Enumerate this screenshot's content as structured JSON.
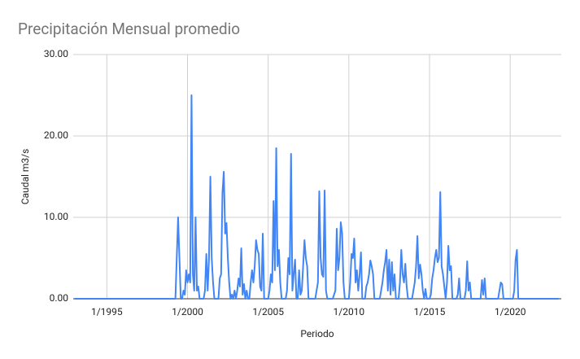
{
  "chart_data": {
    "type": "line",
    "title": "Precipitación Mensual promedio",
    "x_label": "Periodo",
    "y_label": "Caudal m3/s",
    "color": "#4285f4",
    "grid": true,
    "xlim": [
      "12/1992",
      "3/2023"
    ],
    "xticks": [
      "1/1995",
      "1/2000",
      "1/2005",
      "1/2010",
      "1/2015",
      "1/2020"
    ],
    "ylim": [
      0,
      30
    ],
    "yticks": [
      {
        "value": 0,
        "label": "0.00"
      },
      {
        "value": 10,
        "label": "10.00"
      },
      {
        "value": 20,
        "label": "20.00"
      },
      {
        "value": 30,
        "label": "30.00"
      }
    ],
    "x": [
      "1/1993",
      "4/1999",
      "6/1999",
      "7/1999",
      "8/1999",
      "9/1999",
      "10/1999",
      "11/1999",
      "12/1999",
      "1/2000",
      "2/2000",
      "3/2000",
      "4/2000",
      "5/2000",
      "6/2000",
      "7/2000",
      "8/2000",
      "9/2000",
      "10/2000",
      "1/2001",
      "2/2001",
      "3/2001",
      "4/2001",
      "5/2001",
      "6/2001",
      "7/2001",
      "8/2001",
      "9/2001",
      "12/2001",
      "1/2002",
      "2/2002",
      "3/2002",
      "4/2002",
      "5/2002",
      "6/2002",
      "7/2002",
      "8/2002",
      "9/2002",
      "10/2002",
      "11/2002",
      "12/2002",
      "1/2003",
      "2/2003",
      "3/2003",
      "4/2003",
      "5/2003",
      "6/2003",
      "7/2003",
      "8/2003",
      "9/2003",
      "10/2003",
      "11/2003",
      "12/2003",
      "1/2004",
      "2/2004",
      "3/2004",
      "4/2004",
      "5/2004",
      "6/2004",
      "7/2004",
      "8/2004",
      "9/2004",
      "10/2004",
      "1/2005",
      "2/2005",
      "3/2005",
      "4/2005",
      "5/2005",
      "6/2005",
      "7/2005",
      "8/2005",
      "9/2005",
      "10/2005",
      "11/2005",
      "2/2006",
      "3/2006",
      "4/2006",
      "5/2006",
      "6/2006",
      "7/2006",
      "8/2006",
      "9/2006",
      "10/2006",
      "11/2006",
      "12/2006",
      "1/2007",
      "2/2007",
      "3/2007",
      "4/2007",
      "5/2007",
      "6/2007",
      "7/2007",
      "12/2007",
      "1/2008",
      "2/2008",
      "3/2008",
      "4/2008",
      "5/2008",
      "6/2008",
      "7/2008",
      "8/2008",
      "9/2008",
      "1/2009",
      "2/2009",
      "3/2009",
      "4/2009",
      "5/2009",
      "6/2009",
      "7/2009",
      "8/2009",
      "9/2009",
      "10/2009",
      "1/2010",
      "2/2010",
      "3/2010",
      "4/2010",
      "5/2010",
      "6/2010",
      "7/2010",
      "8/2010",
      "9/2010",
      "10/2010",
      "11/2010",
      "1/2011",
      "2/2011",
      "3/2011",
      "4/2011",
      "5/2011",
      "6/2011",
      "7/2011",
      "8/2011",
      "12/2011",
      "1/2012",
      "2/2012",
      "3/2012",
      "4/2012",
      "5/2012",
      "6/2012",
      "7/2012",
      "8/2012",
      "9/2012",
      "10/2012",
      "11/2012",
      "12/2012",
      "2/2013",
      "3/2013",
      "4/2013",
      "5/2013",
      "6/2013",
      "7/2013",
      "8/2013",
      "9/2013",
      "12/2013",
      "1/2014",
      "2/2014",
      "3/2014",
      "4/2014",
      "5/2014",
      "6/2014",
      "7/2014",
      "8/2014",
      "9/2014",
      "10/2014",
      "11/2014",
      "1/2015",
      "2/2015",
      "3/2015",
      "4/2015",
      "5/2015",
      "6/2015",
      "7/2015",
      "8/2015",
      "9/2015",
      "10/2015",
      "11/2015",
      "12/2015",
      "1/2016",
      "2/2016",
      "3/2016",
      "4/2016",
      "5/2016",
      "6/2016",
      "9/2016",
      "10/2016",
      "11/2016",
      "12/2016",
      "3/2017",
      "4/2017",
      "5/2017",
      "6/2017",
      "7/2017",
      "8/2017",
      "3/2018",
      "4/2018",
      "5/2018",
      "6/2018",
      "7/2018",
      "4/2019",
      "5/2019",
      "6/2019",
      "7/2019",
      "8/2019",
      "3/2020",
      "4/2020",
      "5/2020",
      "6/2020",
      "7/2020",
      "1/2023"
    ],
    "values": [
      0,
      0,
      10,
      5,
      0,
      0,
      1,
      0.5,
      3.5,
      2,
      3,
      2,
      25,
      3,
      1,
      10,
      1,
      1.5,
      0,
      0,
      1,
      5.5,
      1,
      5,
      15,
      5,
      2,
      0,
      0,
      2.5,
      3,
      13,
      15.6,
      8,
      9.3,
      5,
      2,
      0,
      0.5,
      0,
      1,
      0,
      1,
      2.5,
      1.5,
      6.2,
      0.5,
      1.8,
      0,
      1,
      0,
      0,
      2,
      3.5,
      2,
      4,
      7.2,
      6,
      5.5,
      1.5,
      1,
      8,
      0,
      0,
      1,
      3,
      2,
      12,
      3.5,
      18.5,
      4,
      6,
      2,
      0,
      0,
      1,
      5,
      3,
      17.8,
      1,
      3,
      4.8,
      0,
      0,
      3.5,
      0.5,
      1,
      4,
      7.2,
      5,
      4,
      0,
      0,
      1,
      2,
      13.2,
      5,
      3,
      2.7,
      13.3,
      1,
      0,
      0,
      0.5,
      1,
      8.6,
      3.5,
      5,
      9.4,
      8,
      2,
      0,
      0,
      2,
      5.5,
      5,
      7.4,
      2,
      3.5,
      1,
      3,
      5.7,
      0,
      0,
      1.5,
      2,
      3,
      4.7,
      4,
      3,
      0,
      0,
      1,
      2,
      3.5,
      4.5,
      6,
      1,
      4.8,
      0.5,
      4.5,
      1,
      3,
      0,
      0,
      2,
      6,
      3,
      2,
      4.3,
      1.5,
      0,
      0,
      1,
      2,
      4,
      7.7,
      2.5,
      4.2,
      3,
      1,
      0,
      1.2,
      0,
      0,
      0.5,
      2.5,
      3.5,
      5,
      6,
      4.5,
      5,
      13.1,
      4,
      3,
      1.5,
      0,
      2,
      6.5,
      3.5,
      4,
      0,
      0,
      0.5,
      2.5,
      0,
      0,
      1,
      4.6,
      1,
      2,
      0,
      0,
      2.3,
      0.5,
      2.5,
      0,
      0,
      1,
      2,
      1.8,
      0,
      0,
      1,
      4.8,
      6,
      0,
      0
    ]
  }
}
